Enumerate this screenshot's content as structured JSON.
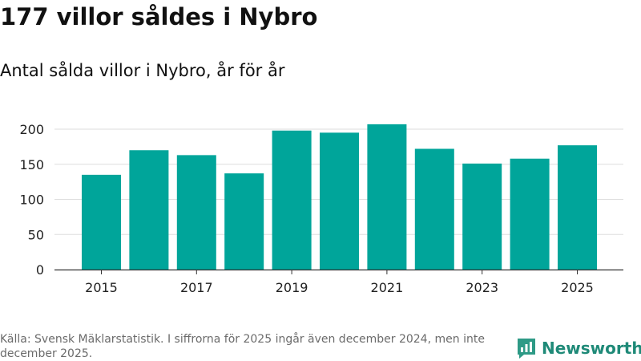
{
  "title": "177 villor såldes i Nybro",
  "subtitle": "Antal sålda villor i Nybro, år för år",
  "footer": "Källa: Svensk Mäklarstatistik. I siffrorna för 2025 ingår även december 2024, men inte december 2025.",
  "brand": {
    "name": "Newsworthy",
    "icon": "newsworthy-logo-icon"
  },
  "colors": {
    "bar": "#00a59a",
    "grid": "#dddddd",
    "axis": "#333333",
    "tick_text": "#222222",
    "brand": "#1f8a78"
  },
  "chart_data": {
    "type": "bar",
    "title": "Antal sålda villor i Nybro, år för år",
    "xlabel": "",
    "ylabel": "",
    "categories": [
      "2015",
      "2016",
      "2017",
      "2018",
      "2019",
      "2020",
      "2021",
      "2022",
      "2023",
      "2024",
      "2025"
    ],
    "values": [
      135,
      170,
      163,
      137,
      198,
      195,
      207,
      172,
      151,
      158,
      177
    ],
    "ylim": [
      0,
      200
    ],
    "yticks": [
      0,
      50,
      100,
      150,
      200
    ],
    "xtick_labels": [
      "2015",
      "2017",
      "2019",
      "2021",
      "2023",
      "2025"
    ],
    "grid": true
  }
}
